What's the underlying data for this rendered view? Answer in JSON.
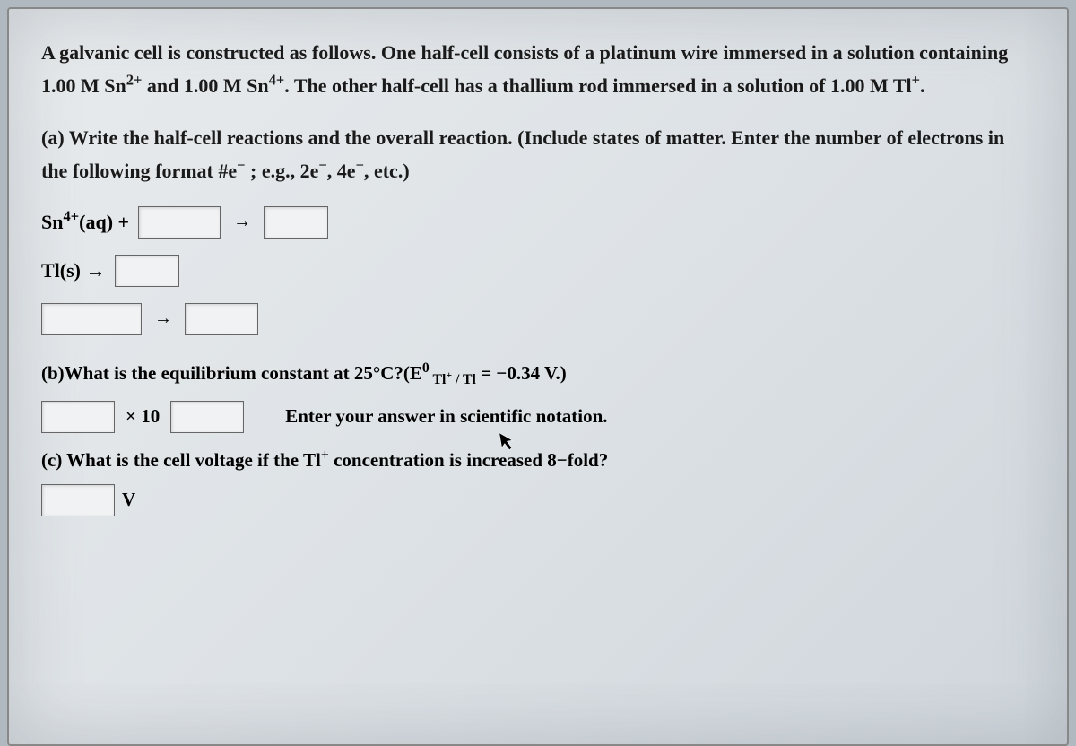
{
  "problem": {
    "intro_html": "A galvanic cell is constructed as follows. One half-cell consists of a platinum wire immersed in a solution containing 1.00 M Sn<sup>2+</sup> and 1.00 M Sn<sup>4+</sup>. The other half-cell has a thallium rod immersed in a solution of 1.00 M Tl<sup>+</sup>.",
    "part_a_html": "(a) Write the half-cell reactions and the overall reaction. (Include states of matter. Enter the number of electrons in the following format #e<sup>−</sup> ; e.g., 2e<sup>−</sup>, 4e<sup>−</sup>, etc.)",
    "eq1_lhs_html": "Sn<sup>4+</sup>(aq) +",
    "eq2_lhs_html": "Tl(s) →",
    "arrow": "→",
    "part_b_html": "(b)What is the equilibrium constant at 25°C?(E<sup>0</sup><sub> Tl<sup>+</sup> / Tl</sub> = −0.34 V.)",
    "times10": "× 10",
    "sci_hint": "Enter your answer in scientific notation.",
    "part_c_html": "(c) What is the cell voltage if the Tl<sup>+</sup> concentration is increased 8−fold?",
    "unit_v": "V"
  }
}
